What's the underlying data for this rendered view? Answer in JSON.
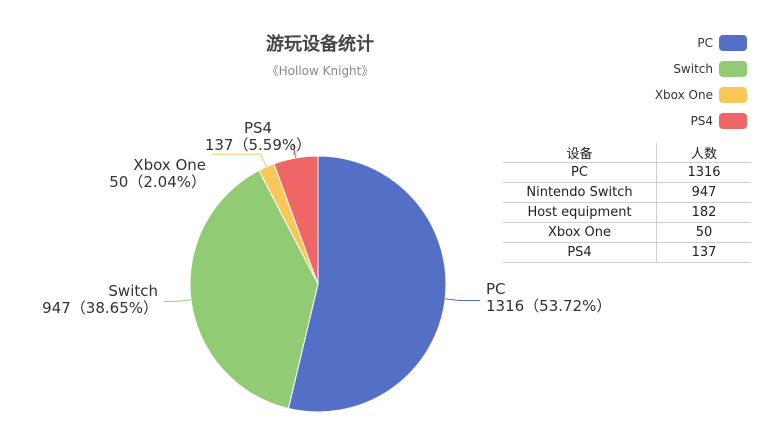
{
  "chart_data": {
    "type": "pie",
    "title": "游玩设备统计",
    "subtitle": "《Hollow Knight》",
    "slices": [
      {
        "name": "PC",
        "value": 1316,
        "percent": "53.72%",
        "color": "#5470c6"
      },
      {
        "name": "Switch",
        "value": 947,
        "percent": "38.65%",
        "color": "#91cc75"
      },
      {
        "name": "Xbox One",
        "value": 50,
        "percent": "2.04%",
        "color": "#fac858"
      },
      {
        "name": "PS4",
        "value": 137,
        "percent": "5.59%",
        "color": "#ee6666"
      }
    ],
    "legend": {
      "position": "top-right",
      "items": [
        "PC",
        "Switch",
        "Xbox One",
        "PS4"
      ]
    }
  },
  "table": {
    "headers": [
      "设备",
      "人数"
    ],
    "rows": [
      [
        "PC",
        "1316"
      ],
      [
        "Nintendo Switch",
        "947"
      ],
      [
        "Host equipment",
        "182"
      ],
      [
        "Xbox One",
        "50"
      ],
      [
        "PS4",
        "137"
      ]
    ]
  }
}
